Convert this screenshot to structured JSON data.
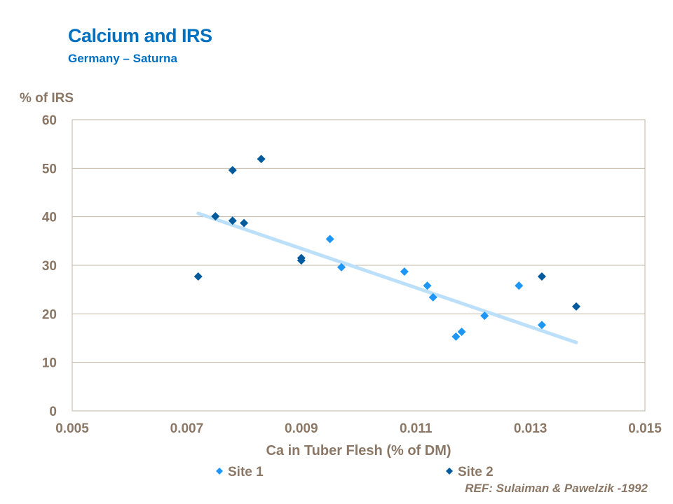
{
  "title": "Calcium and IRS",
  "subtitle": "Germany – Saturna",
  "reference": "REF: Sulaiman & Pawelzik -1992",
  "chart_data": {
    "type": "scatter",
    "xlabel": "Ca in Tuber Flesh (% of DM)",
    "ylabel": "% of IRS",
    "xlim": [
      0.005,
      0.015
    ],
    "ylim": [
      0,
      60
    ],
    "xticks": [
      "0.005",
      "0.007",
      "0.009",
      "0.011",
      "0.013",
      "0.015"
    ],
    "yticks": [
      "0",
      "10",
      "20",
      "30",
      "40",
      "50",
      "60"
    ],
    "grid": "horizontal",
    "legend": "bottom",
    "series": [
      {
        "name": "Site 1",
        "color": "#1E96F5",
        "marker": "diamond",
        "points": [
          [
            0.0095,
            35.4
          ],
          [
            0.0097,
            29.6
          ],
          [
            0.0108,
            28.7
          ],
          [
            0.0112,
            25.8
          ],
          [
            0.0113,
            23.4
          ],
          [
            0.0117,
            15.3
          ],
          [
            0.0118,
            16.3
          ],
          [
            0.0122,
            19.6
          ],
          [
            0.0128,
            25.8
          ],
          [
            0.0132,
            17.7
          ]
        ]
      },
      {
        "name": "Site 2",
        "color": "#005A9C",
        "marker": "diamond",
        "points": [
          [
            0.0072,
            27.7
          ],
          [
            0.0075,
            40.1
          ],
          [
            0.0078,
            49.6
          ],
          [
            0.0078,
            39.2
          ],
          [
            0.008,
            38.7
          ],
          [
            0.0083,
            51.9
          ],
          [
            0.009,
            31.5
          ],
          [
            0.009,
            31.0
          ],
          [
            0.0132,
            27.7
          ],
          [
            0.0138,
            21.5
          ]
        ]
      }
    ],
    "trendline": {
      "color": "#BDE0FA",
      "points": [
        [
          0.0072,
          40.7
        ],
        [
          0.0138,
          14.1
        ]
      ]
    }
  }
}
